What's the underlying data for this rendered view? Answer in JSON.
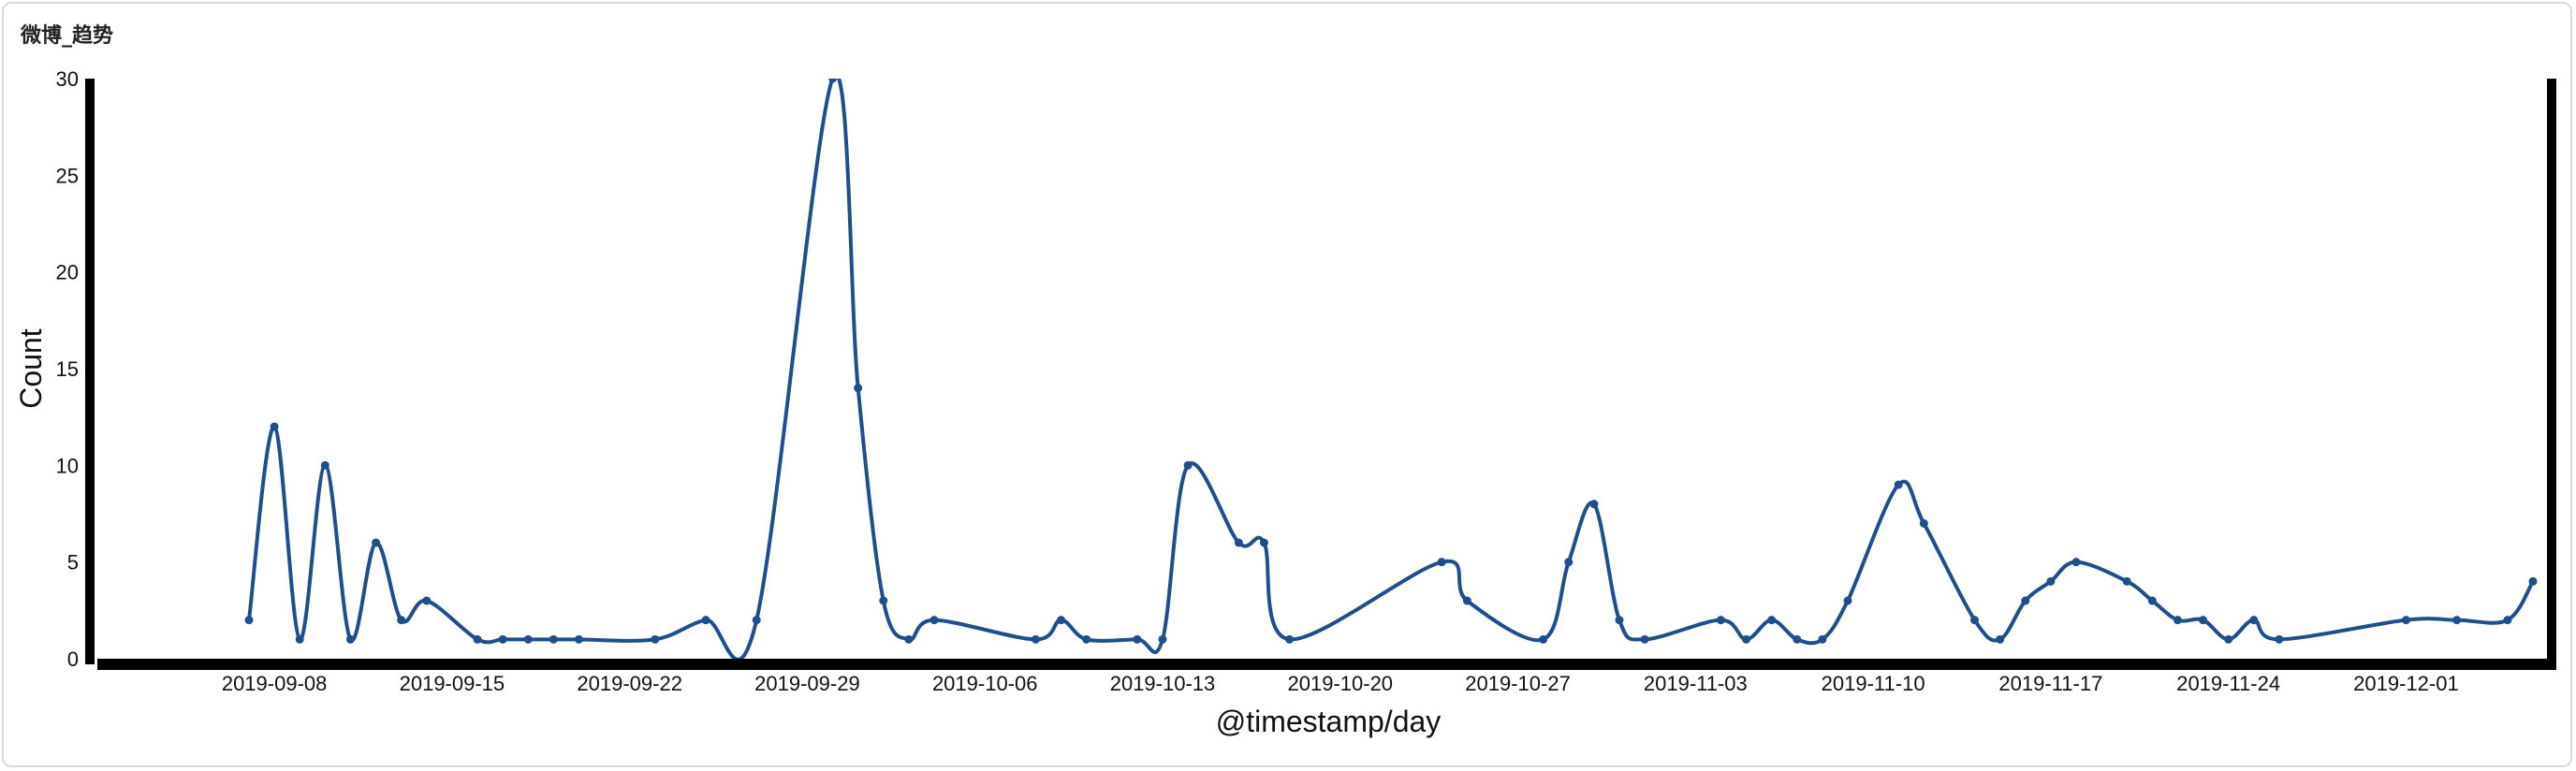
{
  "panel": {
    "title": "微博_趋势"
  },
  "chart_data": {
    "type": "line",
    "title": "",
    "xlabel": "@timestamp/day",
    "ylabel": "Count",
    "ylim": [
      0,
      30
    ],
    "yticks": [
      0,
      5,
      10,
      15,
      20,
      25,
      30
    ],
    "xtick_labels": [
      "2019-09-08",
      "2019-09-15",
      "2019-09-22",
      "2019-09-29",
      "2019-10-06",
      "2019-10-13",
      "2019-10-20",
      "2019-10-27",
      "2019-11-03",
      "2019-11-10",
      "2019-11-17",
      "2019-11-24",
      "2019-12-01"
    ],
    "x_start": "2019-09-07",
    "x_end": "2019-12-06",
    "series": [
      {
        "name": "",
        "color": "#1f4e8c",
        "points": [
          [
            "2019-09-07",
            2
          ],
          [
            "2019-09-08",
            12
          ],
          [
            "2019-09-09",
            1
          ],
          [
            "2019-09-10",
            10
          ],
          [
            "2019-09-11",
            1
          ],
          [
            "2019-09-12",
            6
          ],
          [
            "2019-09-13",
            2
          ],
          [
            "2019-09-14",
            3
          ],
          [
            "2019-09-16",
            1
          ],
          [
            "2019-09-17",
            1
          ],
          [
            "2019-09-18",
            1
          ],
          [
            "2019-09-19",
            1
          ],
          [
            "2019-09-20",
            1
          ],
          [
            "2019-09-23",
            1
          ],
          [
            "2019-09-25",
            2
          ],
          [
            "2019-09-27",
            2
          ],
          [
            "2019-09-30",
            30
          ],
          [
            "2019-10-01",
            14
          ],
          [
            "2019-10-02",
            3
          ],
          [
            "2019-10-03",
            1
          ],
          [
            "2019-10-04",
            2
          ],
          [
            "2019-10-08",
            1
          ],
          [
            "2019-10-09",
            2
          ],
          [
            "2019-10-10",
            1
          ],
          [
            "2019-10-12",
            1
          ],
          [
            "2019-10-13",
            1
          ],
          [
            "2019-10-14",
            10
          ],
          [
            "2019-10-16",
            6
          ],
          [
            "2019-10-17",
            6
          ],
          [
            "2019-10-18",
            1
          ],
          [
            "2019-10-24",
            5
          ],
          [
            "2019-10-25",
            3
          ],
          [
            "2019-10-28",
            1
          ],
          [
            "2019-10-29",
            5
          ],
          [
            "2019-10-30",
            8
          ],
          [
            "2019-10-31",
            2
          ],
          [
            "2019-11-01",
            1
          ],
          [
            "2019-11-04",
            2
          ],
          [
            "2019-11-05",
            1
          ],
          [
            "2019-11-06",
            2
          ],
          [
            "2019-11-07",
            1
          ],
          [
            "2019-11-08",
            1
          ],
          [
            "2019-11-09",
            3
          ],
          [
            "2019-11-11",
            9
          ],
          [
            "2019-11-12",
            7
          ],
          [
            "2019-11-14",
            2
          ],
          [
            "2019-11-15",
            1
          ],
          [
            "2019-11-16",
            3
          ],
          [
            "2019-11-17",
            4
          ],
          [
            "2019-11-18",
            5
          ],
          [
            "2019-11-20",
            4
          ],
          [
            "2019-11-21",
            3
          ],
          [
            "2019-11-22",
            2
          ],
          [
            "2019-11-23",
            2
          ],
          [
            "2019-11-24",
            1
          ],
          [
            "2019-11-25",
            2
          ],
          [
            "2019-11-26",
            1
          ],
          [
            "2019-12-01",
            2
          ],
          [
            "2019-12-03",
            2
          ],
          [
            "2019-12-05",
            2
          ],
          [
            "2019-12-06",
            4
          ]
        ]
      }
    ],
    "grid": false,
    "legend": "none"
  }
}
